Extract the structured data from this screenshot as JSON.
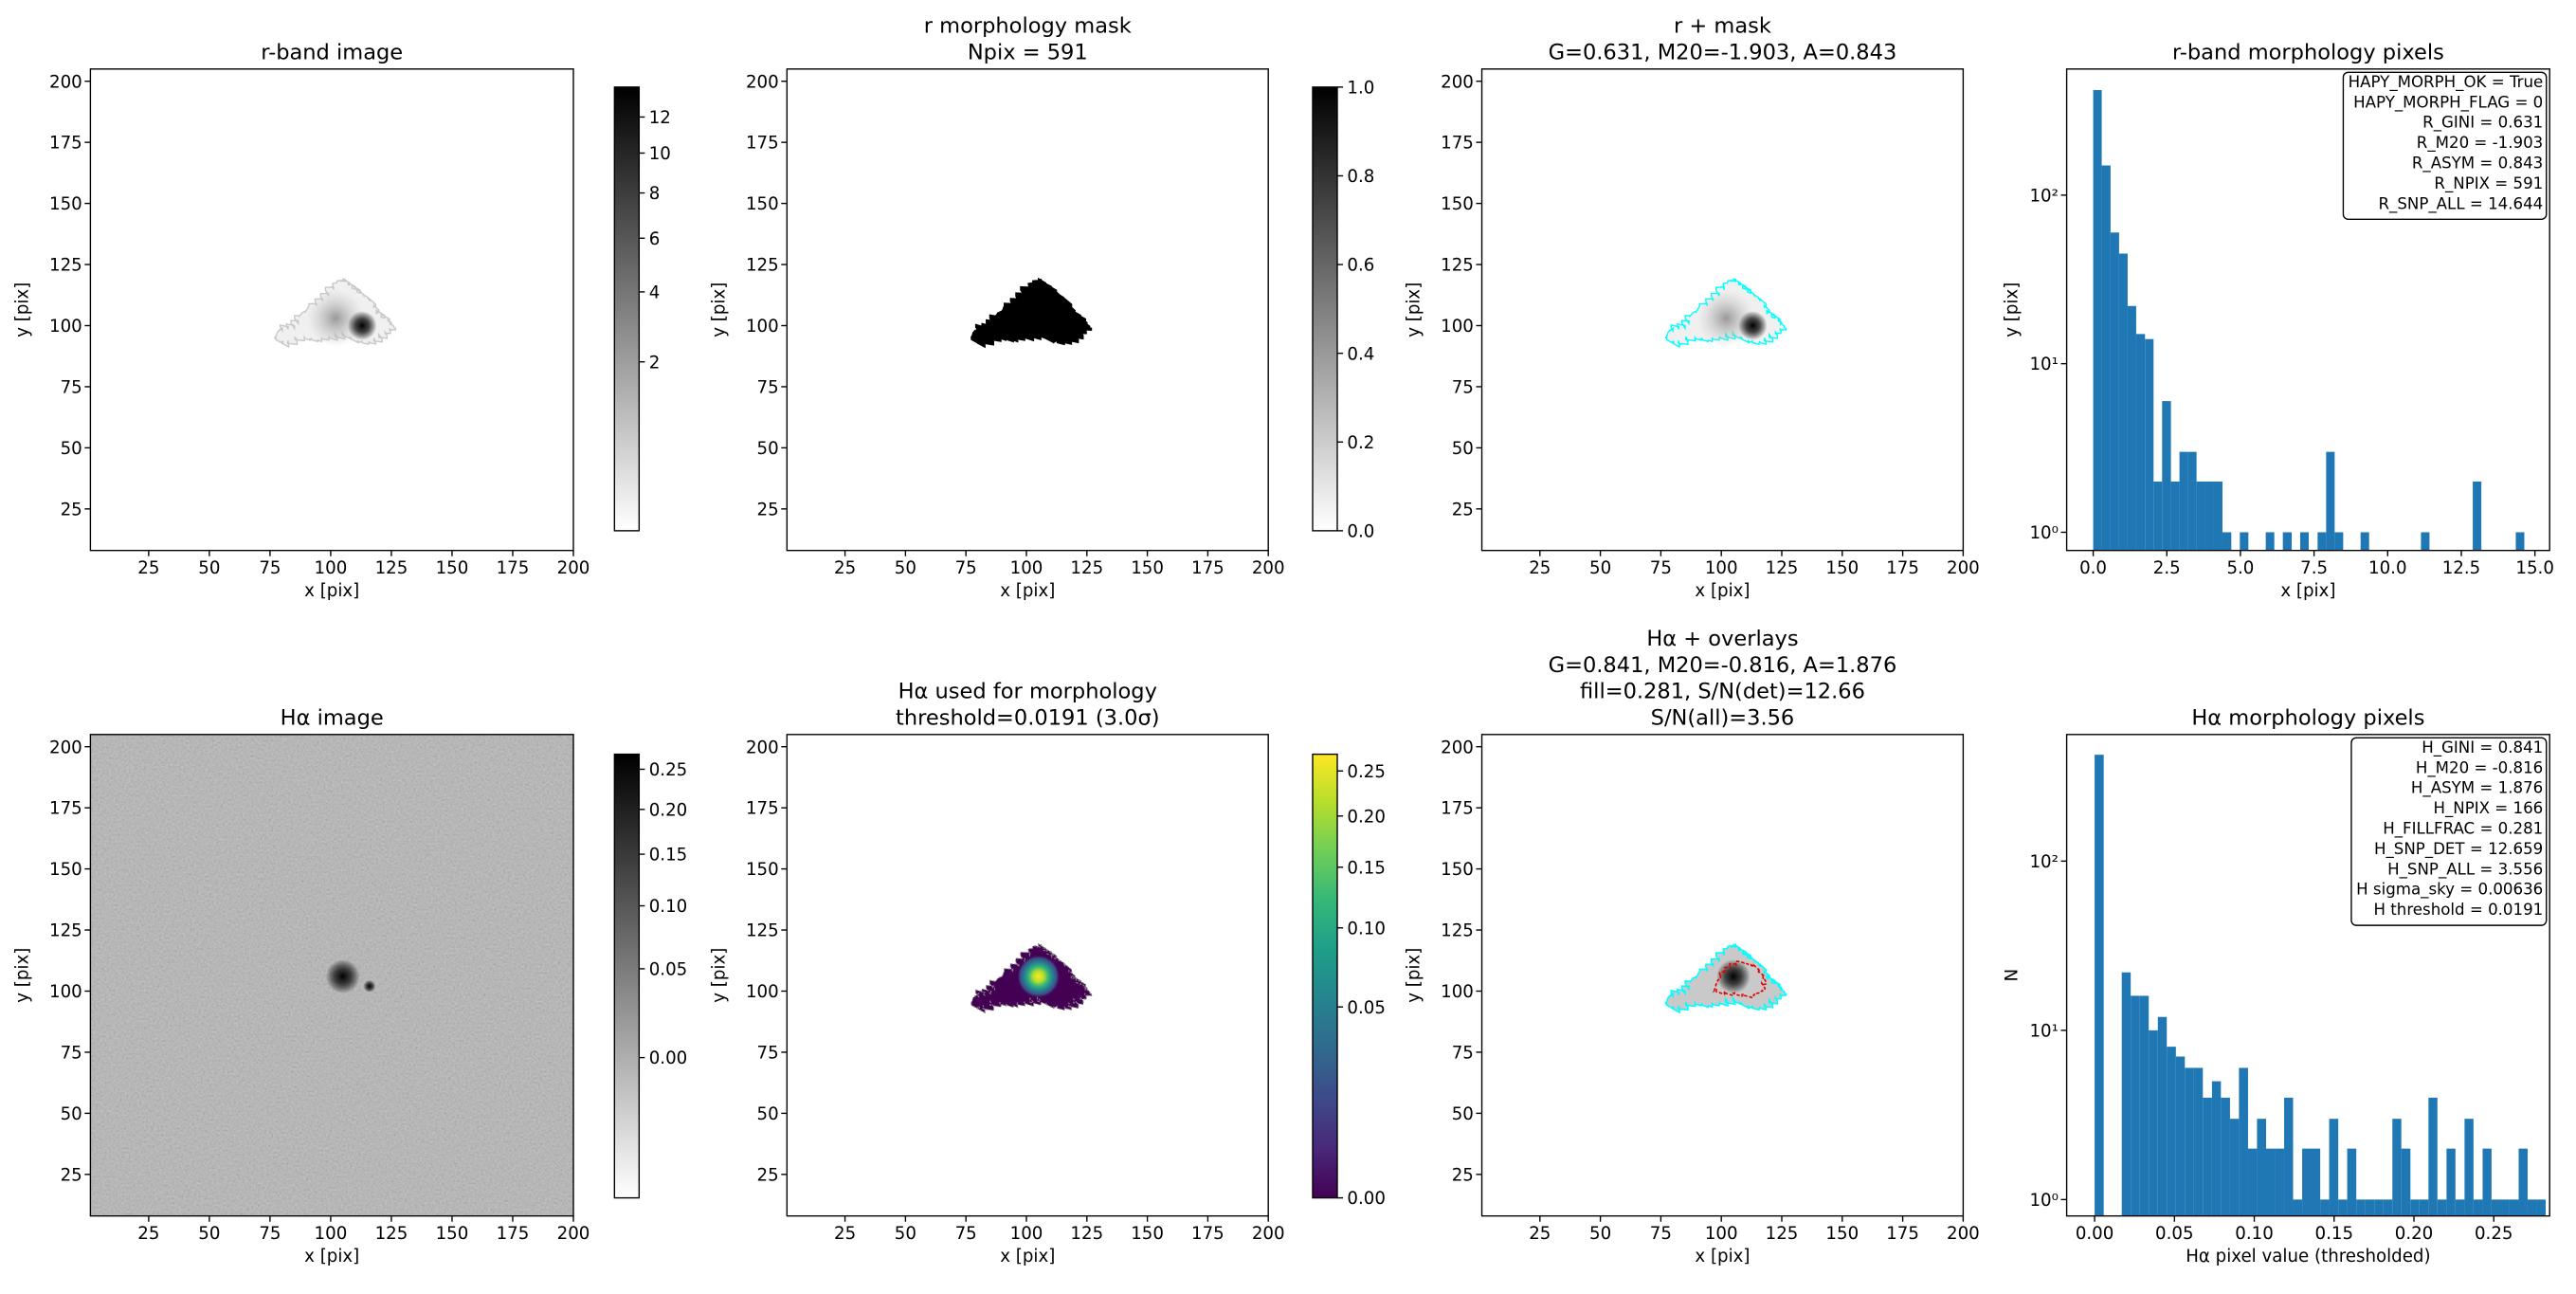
{
  "chart_data": [
    {
      "type": "image",
      "title": [
        "r-band image"
      ],
      "xlabel": "x [pix]",
      "ylabel": "y [pix]",
      "xlim": [
        1,
        200
      ],
      "ylim": [
        8,
        205
      ],
      "xticks": [
        25,
        50,
        75,
        100,
        125,
        150,
        175,
        200
      ],
      "yticks": [
        25,
        50,
        75,
        100,
        125,
        150,
        175,
        200
      ],
      "cmap": "gray_r",
      "colorbar_lim": [
        0,
        13.8
      ],
      "colorbar_stretch": "sqrt",
      "colorbar_ticks": [
        2,
        4,
        6,
        8,
        10,
        12
      ]
    },
    {
      "type": "image",
      "title": [
        "r morphology mask",
        "Npix = 591"
      ],
      "xlabel": "x [pix]",
      "ylabel": "y [pix]",
      "xlim": [
        1,
        200
      ],
      "ylim": [
        8,
        205
      ],
      "xticks": [
        25,
        50,
        75,
        100,
        125,
        150,
        175,
        200
      ],
      "yticks": [
        25,
        50,
        75,
        100,
        125,
        150,
        175,
        200
      ],
      "cmap": "gray_r",
      "colorbar_lim": [
        0,
        1
      ],
      "colorbar_stretch": "linear",
      "colorbar_ticks": [
        {
          "value": 0,
          "label": "0.0"
        },
        0.2,
        0.4,
        0.6,
        0.8,
        {
          "value": 1,
          "label": "1.0"
        }
      ]
    },
    {
      "type": "image",
      "title": [
        "r + mask",
        "G=0.631, M20=-1.903, A=0.843"
      ],
      "xlabel": "x [pix]",
      "ylabel": "y [pix]",
      "xlim": [
        1,
        200
      ],
      "ylim": [
        8,
        205
      ],
      "xticks": [
        25,
        50,
        75,
        100,
        125,
        150,
        175,
        200
      ],
      "yticks": [
        25,
        50,
        75,
        100,
        125,
        150,
        175,
        200
      ],
      "cmap": "gray_r"
    },
    {
      "type": "histogram",
      "title": [
        "r-band morphology pixels"
      ],
      "xlabel": "x [pix]",
      "ylabel": "y [pix]",
      "bins": [
        0,
        0.29,
        0.59,
        0.88,
        1.17,
        1.46,
        1.76,
        2.05,
        2.34,
        2.64,
        2.93,
        3.22,
        3.51,
        3.81,
        4.1,
        4.39,
        4.69,
        4.98,
        5.27,
        5.57,
        5.86,
        6.15,
        6.44,
        6.74,
        7.03,
        7.32,
        7.62,
        7.91,
        8.2,
        8.49,
        8.79,
        9.08,
        9.37,
        9.67,
        9.96,
        10.25,
        10.54,
        10.84,
        11.13,
        11.42,
        11.72,
        12.01,
        12.3,
        12.6,
        12.89,
        13.18,
        13.47,
        13.77,
        14.06,
        14.35,
        14.64
      ],
      "values": [
        420,
        150,
        60,
        45,
        22,
        15,
        14,
        2,
        6,
        2,
        3,
        3,
        2,
        2,
        2,
        1,
        0,
        1,
        0,
        0,
        1,
        0,
        1,
        0,
        1,
        0,
        1,
        3,
        1,
        0,
        0,
        1,
        0,
        0,
        0,
        0,
        0,
        0,
        1,
        0,
        0,
        0,
        0,
        0,
        2,
        0,
        0,
        0,
        0,
        1
      ],
      "color": "#1f77b4",
      "yscale": "log",
      "xlim": [
        -0.9,
        15.5
      ],
      "ylim": [
        0.78,
        560
      ],
      "xticks": [
        {
          "value": 0,
          "label": "0.0"
        },
        2.5,
        {
          "value": 5,
          "label": "5.0"
        },
        7.5,
        {
          "value": 10,
          "label": "10.0"
        },
        12.5,
        {
          "value": 15,
          "label": "15.0"
        }
      ],
      "yticks": [
        {
          "value": 1,
          "label": "10⁰"
        },
        {
          "value": 10,
          "label": "10¹"
        },
        {
          "value": 100,
          "label": "10²"
        }
      ],
      "annotation": [
        "HAPY_MORPH_OK = True",
        "HAPY_MORPH_FLAG = 0",
        "R_GINI = 0.631",
        "R_M20 = -1.903",
        "R_ASYM = 0.843",
        "R_NPIX = 591",
        "R_SNP_ALL = 14.644"
      ]
    },
    {
      "type": "image",
      "title": [
        "Hα image"
      ],
      "xlabel": "x [pix]",
      "ylabel": "y [pix]",
      "xlim": [
        1,
        200
      ],
      "ylim": [
        8,
        205
      ],
      "xticks": [
        25,
        50,
        75,
        100,
        125,
        150,
        175,
        200
      ],
      "yticks": [
        25,
        50,
        75,
        100,
        125,
        150,
        175,
        200
      ],
      "cmap": "gray_r",
      "colorbar_lim": [
        -0.03,
        0.27
      ],
      "colorbar_stretch": "sqrt",
      "colorbar_ticks": [
        {
          "value": 0,
          "label": "0.00"
        },
        0.05,
        {
          "value": 0.1,
          "label": "0.10"
        },
        0.15,
        {
          "value": 0.2,
          "label": "0.20"
        },
        0.25
      ]
    },
    {
      "type": "image",
      "title": [
        "Hα used for morphology",
        "threshold=0.0191 (3.0σ)"
      ],
      "xlabel": "x [pix]",
      "ylabel": "y [pix]",
      "xlim": [
        1,
        200
      ],
      "ylim": [
        8,
        205
      ],
      "xticks": [
        25,
        50,
        75,
        100,
        125,
        150,
        175,
        200
      ],
      "yticks": [
        25,
        50,
        75,
        100,
        125,
        150,
        175,
        200
      ],
      "cmap": "viridis",
      "colorbar_lim": [
        0,
        0.27
      ],
      "colorbar_stretch": "sqrt",
      "colorbar_ticks": [
        {
          "value": 0,
          "label": "0.00"
        },
        0.05,
        {
          "value": 0.1,
          "label": "0.10"
        },
        0.15,
        {
          "value": 0.2,
          "label": "0.20"
        },
        0.25
      ]
    },
    {
      "type": "image",
      "title": [
        "Hα + overlays",
        "G=0.841, M20=-0.816, A=1.876",
        "fill=0.281, S/N(det)=12.66",
        "S/N(all)=3.56"
      ],
      "xlabel": "x [pix]",
      "ylabel": "y [pix]",
      "xlim": [
        1,
        200
      ],
      "ylim": [
        8,
        205
      ],
      "xticks": [
        25,
        50,
        75,
        100,
        125,
        150,
        175,
        200
      ],
      "yticks": [
        25,
        50,
        75,
        100,
        125,
        150,
        175,
        200
      ],
      "cmap": "gray_r"
    },
    {
      "type": "histogram",
      "title": [
        "Hα morphology pixels"
      ],
      "xlabel": "Hα pixel value (thresholded)",
      "ylabel": "N",
      "bins": [
        0,
        0.0057,
        0.0113,
        0.017,
        0.0226,
        0.0283,
        0.0339,
        0.0396,
        0.0452,
        0.0509,
        0.0565,
        0.0622,
        0.0678,
        0.0735,
        0.0791,
        0.0848,
        0.0904,
        0.0961,
        0.1017,
        0.1074,
        0.113,
        0.1187,
        0.1243,
        0.13,
        0.1356,
        0.1413,
        0.1469,
        0.1526,
        0.1582,
        0.1639,
        0.1695,
        0.1752,
        0.1808,
        0.1865,
        0.1921,
        0.1978,
        0.2034,
        0.2091,
        0.2147,
        0.2204,
        0.226,
        0.2317,
        0.2373,
        0.243,
        0.2486,
        0.2543,
        0.2599,
        0.2656,
        0.2712,
        0.2769,
        0.2825
      ],
      "values": [
        425,
        0,
        0,
        22,
        16,
        16,
        10,
        12,
        8,
        7,
        6,
        6,
        4,
        5,
        4,
        3,
        6,
        2,
        3,
        2,
        2,
        4,
        1,
        2,
        2,
        1,
        3,
        1,
        2,
        1,
        1,
        1,
        1,
        3,
        2,
        1,
        1,
        4,
        1,
        2,
        1,
        3,
        1,
        2,
        1,
        1,
        1,
        2,
        1,
        1
      ],
      "color": "#1f77b4",
      "yscale": "log",
      "xlim": [
        -0.0175,
        0.285
      ],
      "ylim": [
        0.8,
        560
      ],
      "xticks": [
        {
          "value": 0,
          "label": "0.00"
        },
        0.05,
        {
          "value": 0.1,
          "label": "0.10"
        },
        0.15,
        {
          "value": 0.2,
          "label": "0.20"
        },
        0.25
      ],
      "yticks": [
        {
          "value": 1,
          "label": "10⁰"
        },
        {
          "value": 10,
          "label": "10¹"
        },
        {
          "value": 100,
          "label": "10²"
        }
      ],
      "annotation": [
        "H_GINI = 0.841",
        "H_M20 = -0.816",
        "H_ASYM = 1.876",
        "H_NPIX = 166",
        "H_FILLFRAC = 0.281",
        "H_SNP_DET = 12.659",
        "H_SNP_ALL = 3.556",
        "H sigma_sky = 0.00636",
        "H threshold = 0.0191"
      ]
    }
  ]
}
